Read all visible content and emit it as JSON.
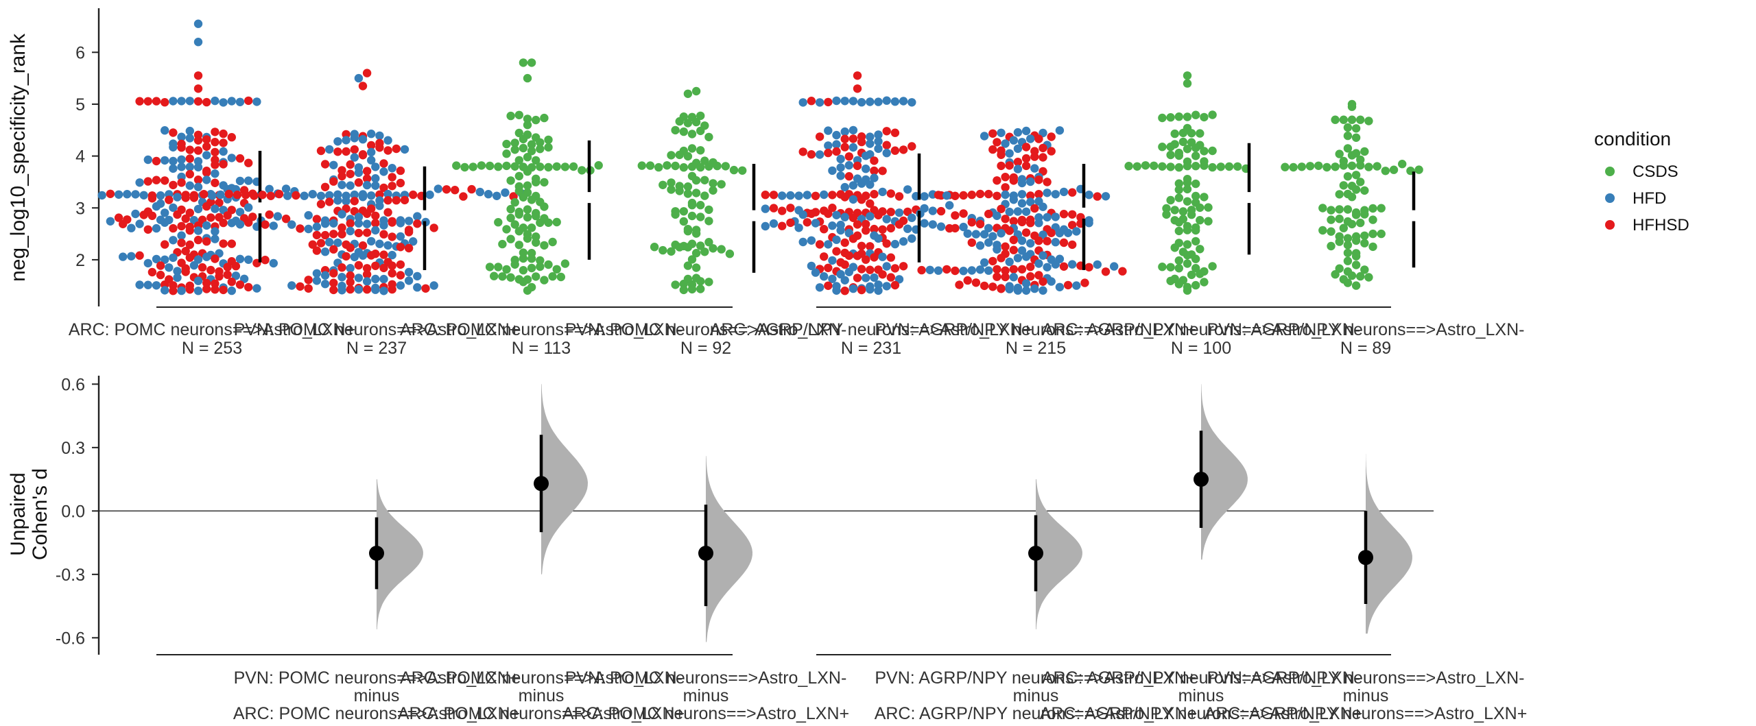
{
  "chart_data": [
    {
      "type": "scatter",
      "subtype": "swarm",
      "ylabel": "neg_log10_specificity_rank",
      "ylim": [
        1.1,
        6.85
      ],
      "yticks": [
        2,
        3,
        4,
        5,
        6
      ],
      "legend": {
        "title": "condition",
        "placement": "right",
        "entries": [
          {
            "name": "CSDS",
            "color": "#4daf4a"
          },
          {
            "name": "HFD",
            "color": "#377eb8"
          },
          {
            "name": "HFHSD",
            "color": "#e41a1c"
          }
        ]
      },
      "groups": [
        {
          "label": "ARC: POMC neurons==>Astro_LXN+",
          "n_label": "N = 253",
          "dist": "bi",
          "mean": 3.0,
          "sd_low": 1.95,
          "sd_high": 4.1,
          "min": 1.35,
          "max": 5.1,
          "plateaus": [
            5.05,
            3.25
          ],
          "series": [
            {
              "name": "HFD",
              "count": 120,
              "color": "#377eb8"
            },
            {
              "name": "HFHSD",
              "count": 133,
              "color": "#e41a1c"
            }
          ],
          "outliers": [
            5.3,
            5.55,
            6.2,
            6.55
          ]
        },
        {
          "label": "PVN: POMC neurons==>Astro_LXN+",
          "n_label": "N = 237",
          "dist": "bi",
          "mean": 2.85,
          "sd_low": 1.8,
          "sd_high": 3.8,
          "min": 1.3,
          "max": 5.2,
          "plateaus": [
            3.25
          ],
          "series": [
            {
              "name": "HFD",
              "count": 115,
              "color": "#377eb8"
            },
            {
              "name": "HFHSD",
              "count": 122,
              "color": "#e41a1c"
            }
          ],
          "outliers": [
            5.35,
            5.5,
            5.6
          ]
        },
        {
          "label": "ARC: POMC neurons==>Astro_LXN-",
          "n_label": "N = 113",
          "dist": "green",
          "mean": 3.2,
          "sd_low": 2.0,
          "sd_high": 4.3,
          "min": 1.35,
          "max": 5.3,
          "plateaus": [
            3.8
          ],
          "series": [
            {
              "name": "CSDS",
              "count": 113,
              "color": "#4daf4a"
            }
          ],
          "outliers": [
            5.5,
            5.8,
            5.8
          ]
        },
        {
          "label": "PVN: POMC neurons==>Astro_LXN-",
          "n_label": "N = 92",
          "dist": "green",
          "mean": 2.85,
          "sd_low": 1.75,
          "sd_high": 3.85,
          "min": 1.35,
          "max": 5.0,
          "plateaus": [
            3.8
          ],
          "series": [
            {
              "name": "CSDS",
              "count": 92,
              "color": "#4daf4a"
            }
          ],
          "outliers": [
            5.2,
            5.25
          ]
        },
        {
          "label": "ARC: AGRP/NPY neurons==>Astro_LXN+",
          "n_label": "N = 231",
          "dist": "bi",
          "mean": 3.05,
          "sd_low": 1.95,
          "sd_high": 4.05,
          "min": 1.35,
          "max": 5.1,
          "plateaus": [
            5.05,
            3.25
          ],
          "series": [
            {
              "name": "HFD",
              "count": 115,
              "color": "#377eb8"
            },
            {
              "name": "HFHSD",
              "count": 116,
              "color": "#e41a1c"
            }
          ],
          "outliers": [
            5.3,
            5.55
          ]
        },
        {
          "label": "PVN: AGRP/NPY neurons==>Astro_LXN+",
          "n_label": "N = 215",
          "dist": "bi",
          "mean": 2.9,
          "sd_low": 1.8,
          "sd_high": 3.85,
          "min": 1.3,
          "max": 5.1,
          "plateaus": [
            3.25,
            1.8
          ],
          "series": [
            {
              "name": "HFD",
              "count": 105,
              "color": "#377eb8"
            },
            {
              "name": "HFHSD",
              "count": 110,
              "color": "#e41a1c"
            }
          ],
          "outliers": []
        },
        {
          "label": "ARC: AGRP/NPY neurons==>Astro_LXN-",
          "n_label": "N = 100",
          "dist": "green",
          "mean": 3.2,
          "sd_low": 2.1,
          "sd_high": 4.25,
          "min": 1.3,
          "max": 5.2,
          "plateaus": [
            3.8
          ],
          "series": [
            {
              "name": "CSDS",
              "count": 100,
              "color": "#4daf4a"
            }
          ],
          "outliers": [
            5.4,
            5.55
          ]
        },
        {
          "label": "PVN: AGRP/NPY neurons==>Astro_LXN-",
          "n_label": "N = 89",
          "dist": "green",
          "mean": 2.85,
          "sd_low": 1.85,
          "sd_high": 3.7,
          "min": 1.3,
          "max": 4.7,
          "plateaus": [
            3.8
          ],
          "series": [
            {
              "name": "CSDS",
              "count": 89,
              "color": "#4daf4a"
            }
          ],
          "outliers": [
            4.95,
            5.0
          ]
        }
      ]
    },
    {
      "type": "scatter",
      "subtype": "effect-size",
      "ylabel_lines": [
        "Unpaired",
        "Cohen's d"
      ],
      "ylim": [
        -0.68,
        0.64
      ],
      "yticks": [
        -0.6,
        -0.3,
        0.0,
        0.3,
        0.6
      ],
      "ytick_labels": [
        "-0.6",
        "-0.3",
        "0.0",
        "0.3",
        "0.6"
      ],
      "comparisons": [
        {
          "x": 1,
          "label_top": "PVN: POMC neurons==>Astro_LXN+",
          "label_mid": "minus",
          "label_bottom": "ARC: POMC neurons==>Astro_LXN+",
          "d": -0.2,
          "ci": [
            -0.37,
            -0.03
          ],
          "dist_range": [
            -0.56,
            0.15
          ]
        },
        {
          "x": 2,
          "label_top": "ARC: POMC neurons==>Astro_LXN-",
          "label_mid": "minus",
          "label_bottom": "ARC: POMC neurons==>Astro_LXN+",
          "d": 0.13,
          "ci": [
            -0.1,
            0.36
          ],
          "dist_range": [
            -0.3,
            0.6
          ]
        },
        {
          "x": 3,
          "label_top": "PVN: POMC neurons==>Astro_LXN-",
          "label_mid": "minus",
          "label_bottom": "ARC: POMC neurons==>Astro_LXN+",
          "d": -0.2,
          "ci": [
            -0.45,
            0.03
          ],
          "dist_range": [
            -0.62,
            0.26
          ]
        },
        {
          "x": 5,
          "label_top": "PVN: AGRP/NPY neurons==>Astro_LXN+",
          "label_mid": "minus",
          "label_bottom": "ARC: AGRP/NPY neurons==>Astro_LXN+",
          "d": -0.2,
          "ci": [
            -0.38,
            -0.02
          ],
          "dist_range": [
            -0.56,
            0.15
          ]
        },
        {
          "x": 6,
          "label_top": "ARC: AGRP/NPY neurons==>Astro_LXN-",
          "label_mid": "minus",
          "label_bottom": "ARC: AGRP/NPY neurons==>Astro_LXN+",
          "d": 0.15,
          "ci": [
            -0.08,
            0.38
          ],
          "dist_range": [
            -0.23,
            0.6
          ]
        },
        {
          "x": 7,
          "label_top": "PVN: AGRP/NPY neurons==>Astro_LXN-",
          "label_mid": "minus",
          "label_bottom": "ARC: AGRP/NPY neurons==>Astro_LXN+",
          "d": -0.22,
          "ci": [
            -0.44,
            0.0
          ],
          "dist_range": [
            -0.58,
            0.27
          ]
        }
      ]
    }
  ]
}
